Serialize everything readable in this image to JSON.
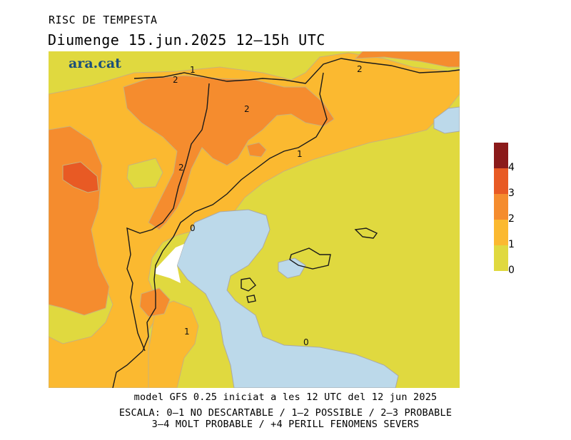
{
  "title": {
    "line1": "RISC DE TEMPESTA",
    "line2": "Diumenge  15.jun.2025 12–15h UTC"
  },
  "brand": "ara.cat",
  "legend": {
    "ticks": [
      "0",
      "1",
      "2",
      "3",
      "4"
    ],
    "colors": {
      "water": "#bcd9ea",
      "level_0_1": "#e0d93f",
      "level_1_2": "#fbb930",
      "level_2_3": "#f58c2e",
      "level_3_4": "#e85a24",
      "level_4_plus": "#8b1a1a"
    }
  },
  "contour_labels": [
    "1",
    "2",
    "2",
    "2",
    "2",
    "0",
    "1",
    "1",
    "0"
  ],
  "footer": {
    "line1": "model GFS 0.25 iniciat a les 12 UTC del 12 jun 2025",
    "line2": "ESCALA: 0–1 NO DESCARTABLE / 1–2 POSSIBLE / 2–3 PROBABLE",
    "line3": "3–4 MOLT PROBABLE / +4 PERILL FENOMENS SEVERS"
  }
}
